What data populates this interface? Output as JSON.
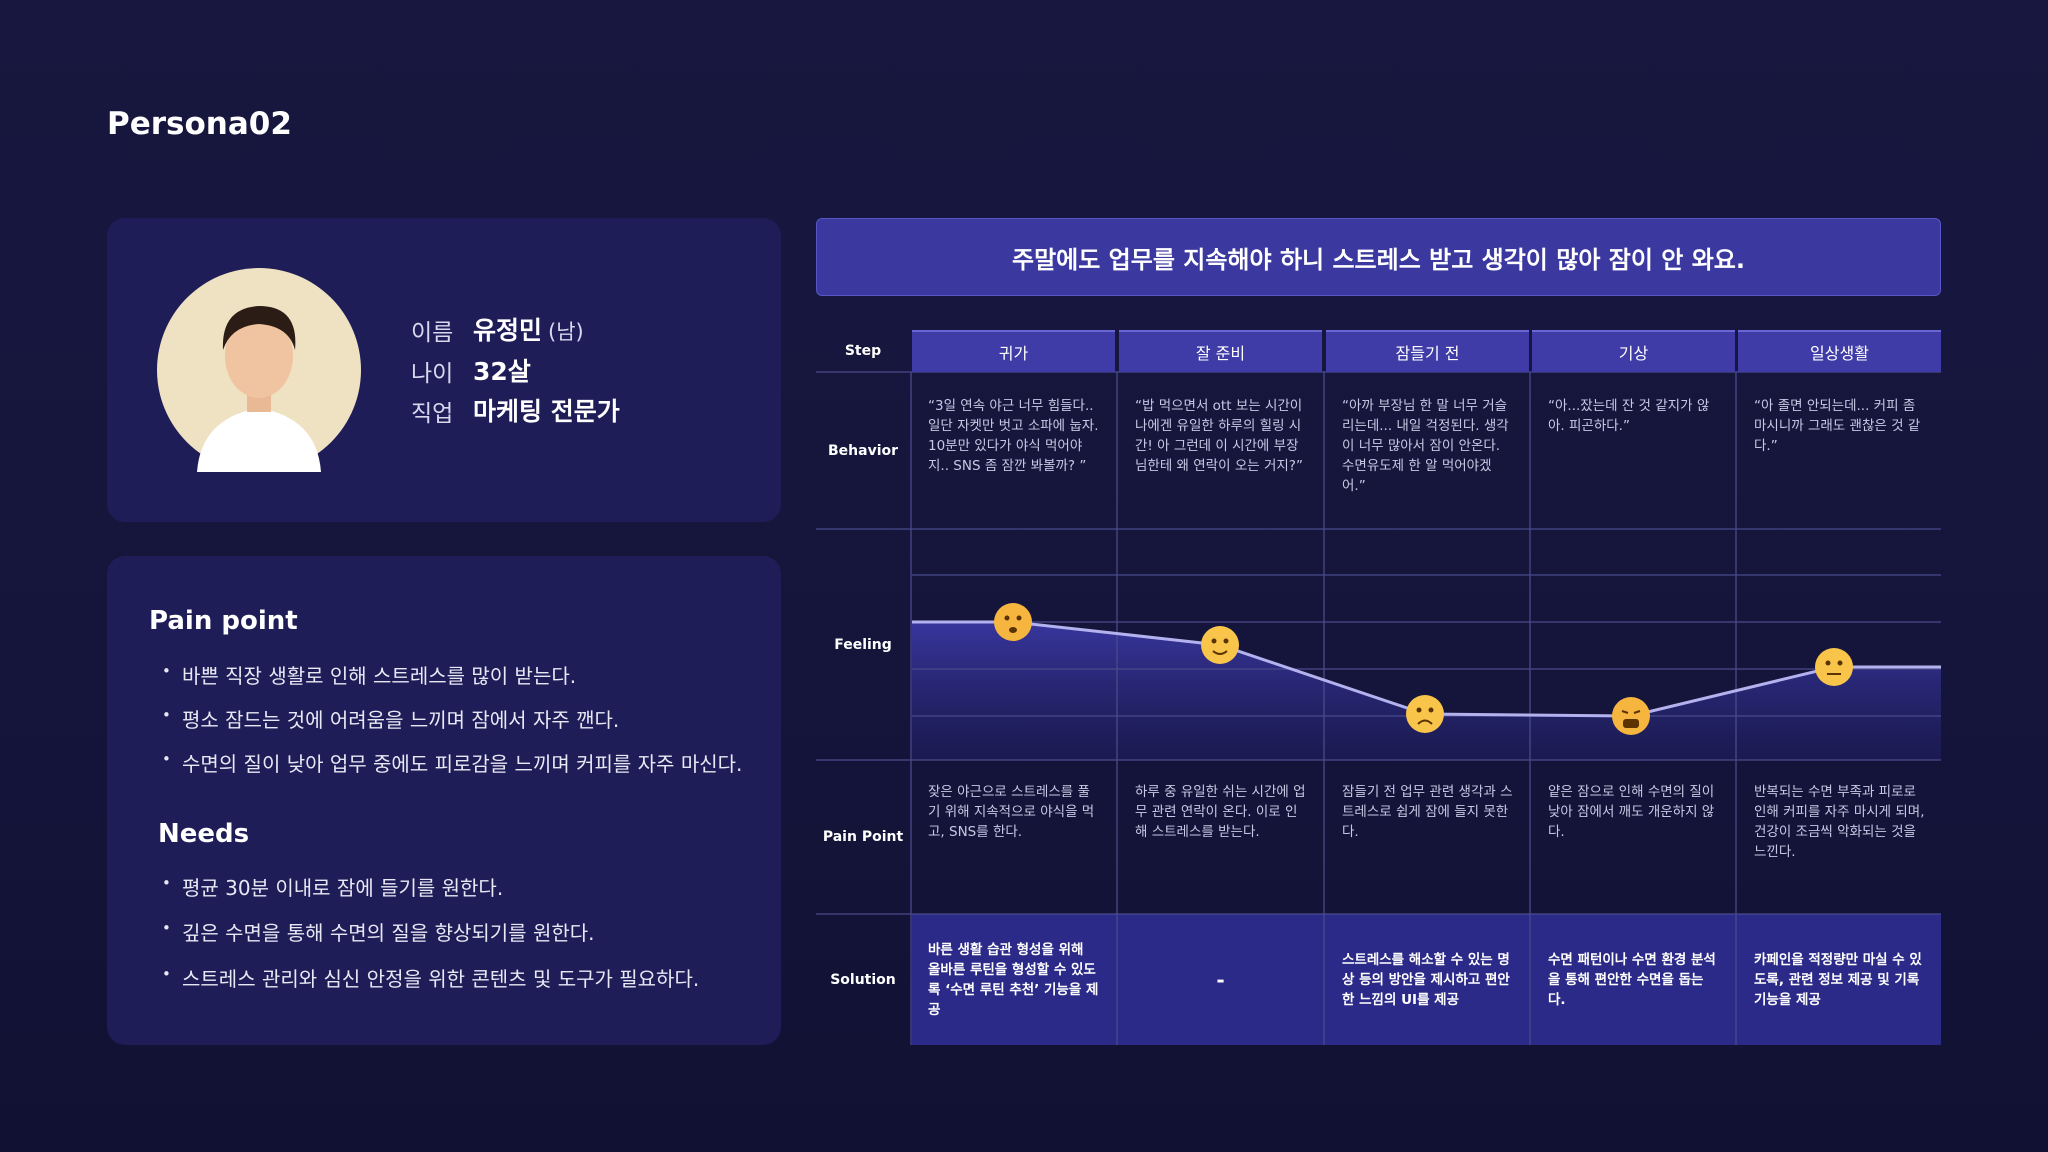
{
  "title": "Persona02",
  "profile": {
    "fields": [
      {
        "label": "이름",
        "value": "유정민",
        "note": "(남)"
      },
      {
        "label": "나이",
        "value": "32살"
      },
      {
        "label": "직업",
        "value": "마케팅 전문가"
      }
    ]
  },
  "pain_point": {
    "title": "Pain point",
    "items": [
      "바쁜 직장 생활로 인해 스트레스를 많이 받는다.",
      "평소 잠드는 것에 어려움을 느끼며 잠에서 자주 깬다.",
      "수면의 질이 낮아 업무 중에도 피로감을 느끼며 커피를 자주 마신다."
    ]
  },
  "needs": {
    "title": "Needs",
    "items": [
      "평균 30분 이내로 잠에 들기를 원한다.",
      "깊은 수면을 통해 수면의 질을 향상되기를 원한다.",
      "스트레스 관리와 심신 안정을 위한 콘텐츠 및 도구가 필요하다."
    ]
  },
  "journey": {
    "headline": "주말에도 업무를 지속해야 하니 스트레스 받고 생각이 많아 잠이 안 와요.",
    "step_label": "Step",
    "steps": [
      "귀가",
      "잘 준비",
      "잠들기 전",
      "기상",
      "일상생활"
    ],
    "rows": [
      {
        "label": "Behavior",
        "cells": [
          "“3일 연속 야근 너무 힘들다.. 일단 자켓만 벗고 소파에 눕자. 10분만 있다가 야식 먹어야지.. SNS 좀 잠깐 봐볼까? ”",
          "“밥 먹으면서 ott 보는 시간이 나에겐 유일한 하루의 힐링 시간! 아 그런데 이 시간에 부장님한테 왜 연락이 오는 거지?”",
          "“아까 부장님 한 말 너무 거슬리는데... 내일 걱정된다. 생각이 너무 많아서 잠이 안온다. 수면유도제 한 알 먹어야겠어.”",
          "“아...잤는데 잔 것 같지가 않아. 피곤하다.”",
          "“아 졸면 안되는데... 커피 좀 마시니까 그래도 괜찮은 것 같다.”"
        ]
      },
      {
        "label": "Feeling"
      },
      {
        "label": "Pain Point",
        "cells": [
          "잦은 야근으로 스트레스를 풀기 위해 지속적으로 야식을 먹고, SNS를 한다.",
          "하루 중 유일한 쉬는 시간에 업무 관련 연락이 온다. 이로 인해 스트레스를 받는다.",
          "잠들기 전 업무 관련 생각과 스트레스로 쉽게 잠에 들지 못한다.",
          "얕은 잠으로 인해 수면의 질이 낮아 잠에서 깨도 개운하지 않다.",
          "반복되는 수면 부족과 피로로 인해 커피를 자주 마시게 되며, 건강이 조금씩 악화되는 것을 느낀다."
        ]
      },
      {
        "label": "Solution",
        "cells": [
          "바른 생활 습관 형성을 위해 올바른 루틴을 형성할 수 있도록 ‘수면 루틴 추천’ 기능을 제공",
          "-",
          "스트레스를 해소할 수 있는 명상 등의 방안을 제시하고 편안한 느낌의 UI를 제공",
          "수면 패턴이나 수면 환경 분석을 통해 편안한 수면을 돕는다.",
          "카페인을 적정량만 마실 수 있도록, 관련 정보 제공 및 기록 기능을 제공"
        ]
      }
    ]
  }
}
